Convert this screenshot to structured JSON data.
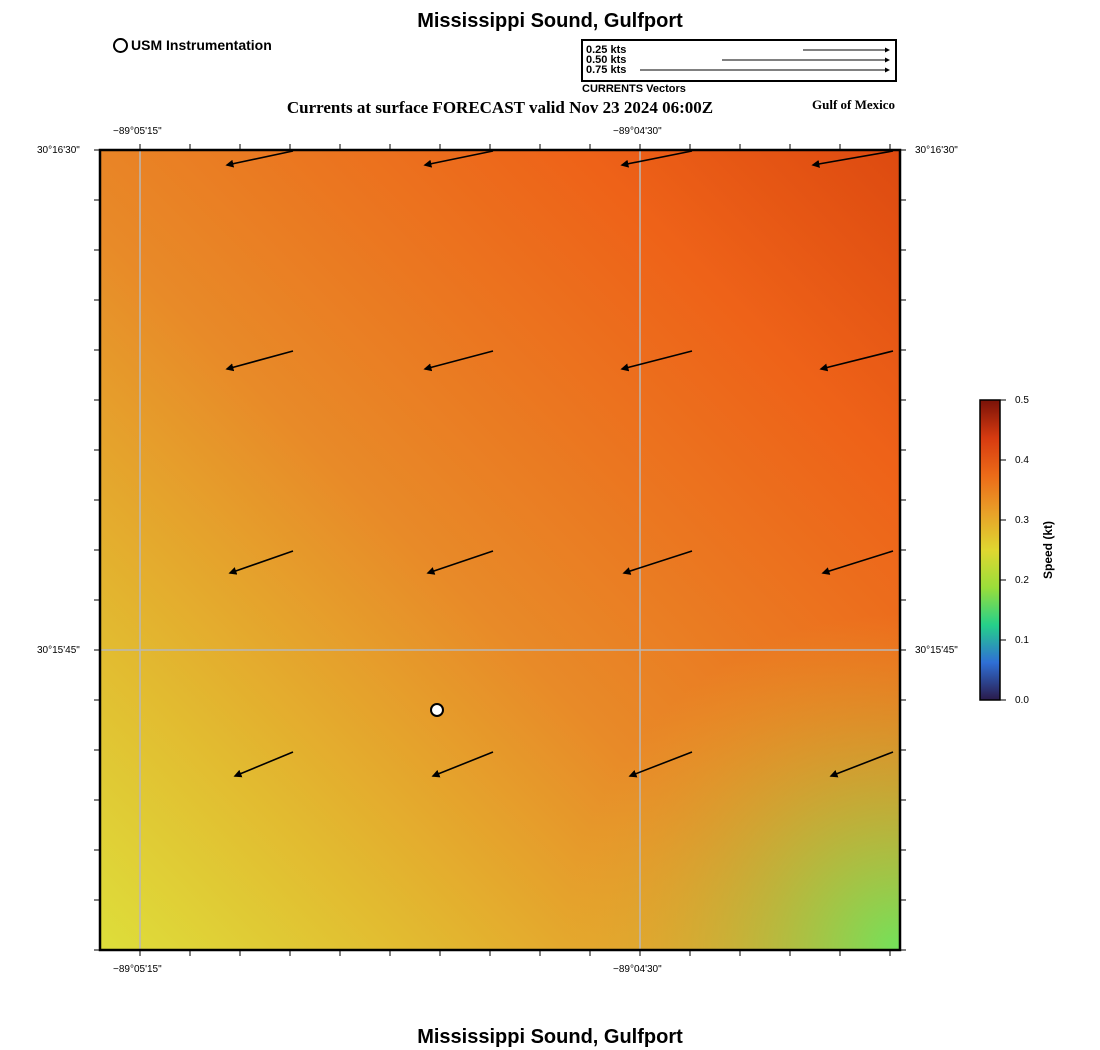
{
  "header": {
    "title": "Mississippi Sound, Gulfport",
    "forecast_title": "Currents at surface FORECAST valid Nov 23 2024 06:00Z",
    "region": "Gulf of Mexico"
  },
  "footer": {
    "title": "Mississippi Sound, Gulfport"
  },
  "legend": {
    "marker_label": "USM Instrumentation"
  },
  "vector_legend": {
    "caption": "CURRENTS Vectors",
    "entries": [
      {
        "label": "0.25 kts",
        "value": 0.25
      },
      {
        "label": "0.50 kts",
        "value": 0.5
      },
      {
        "label": "0.75 kts",
        "value": 0.75
      }
    ]
  },
  "axes": {
    "top_ticks": [
      "−89°05'15\"",
      "−89°04'30\""
    ],
    "bottom_ticks": [
      "−89°05'15\"",
      "−89°04'30\""
    ],
    "left_ticks": [
      "30°16'30\"",
      "30°15'45\""
    ],
    "right_ticks": [
      "30°16'30\"",
      "30°15'45\""
    ]
  },
  "colorbar": {
    "label": "Speed (kt)",
    "min": 0.0,
    "max": 0.5,
    "ticks": [
      "0.5",
      "0.4",
      "0.3",
      "0.2",
      "0.1",
      "0.0"
    ],
    "colors": [
      "#2a1a4a",
      "#2f6fd6",
      "#25d08a",
      "#9ade3a",
      "#e0d630",
      "#e8a028",
      "#ec6a18",
      "#d63a10",
      "#7a1208"
    ]
  },
  "field_colors": {
    "high": "#dd4a10",
    "upper": "#ee6218",
    "mid": "#e88a28",
    "lower": "#e2ba30",
    "low": "#dede3a",
    "corner": "#72e25a"
  },
  "station": {
    "name": "USM Instrumentation"
  }
}
